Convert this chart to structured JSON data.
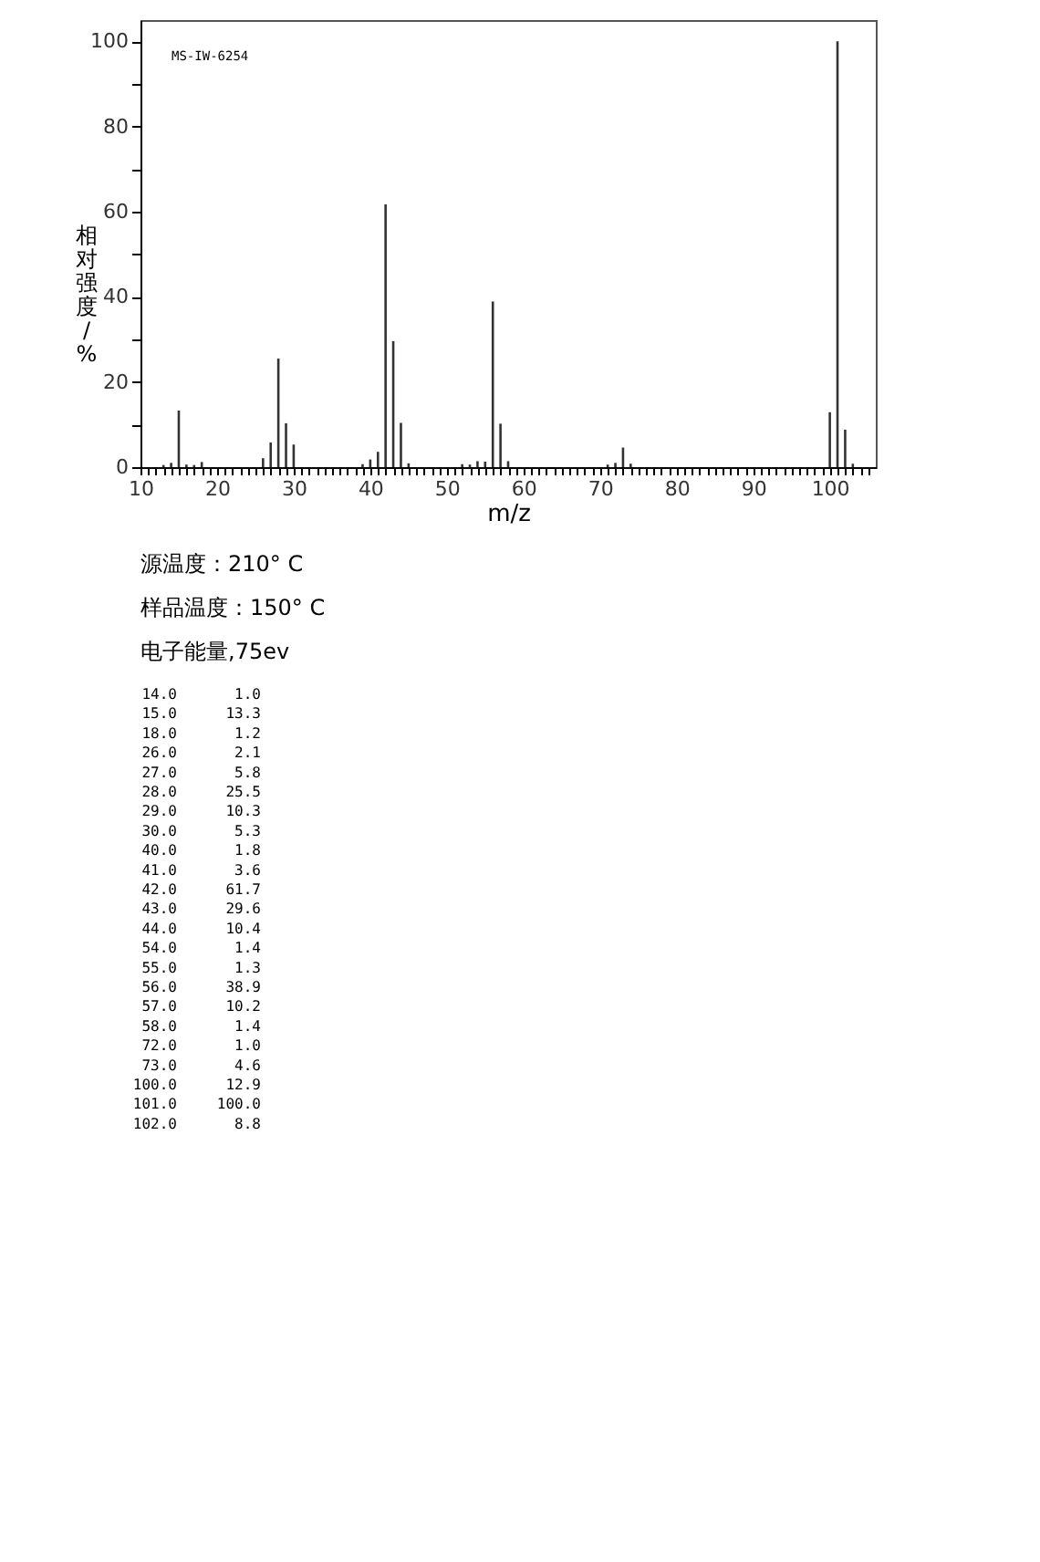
{
  "chart_data": [
    {
      "type": "bar",
      "ylabel": "相对强度/%",
      "xlabel": "m/z",
      "annotations": [
        "MS-IW-6254",
        "源温度：210° C",
        "样品温度：150° C",
        "电子能量,75ev"
      ],
      "xlim": [
        10,
        106
      ],
      "ylim": [
        0,
        105
      ],
      "xticks": [
        10,
        {
          "value": 11,
          "label": null
        },
        {
          "value": 12,
          "label": null
        },
        {
          "value": 13,
          "label": null
        },
        {
          "value": 14,
          "label": null
        },
        {
          "value": 15,
          "label": null
        },
        {
          "value": 16,
          "label": null
        },
        {
          "value": 17,
          "label": null
        },
        {
          "value": 18,
          "label": null
        },
        {
          "value": 19,
          "label": null
        },
        20,
        {
          "value": 21,
          "label": null
        },
        {
          "value": 22,
          "label": null
        },
        {
          "value": 23,
          "label": null
        },
        {
          "value": 24,
          "label": null
        },
        {
          "value": 25,
          "label": null
        },
        {
          "value": 26,
          "label": null
        },
        {
          "value": 27,
          "label": null
        },
        {
          "value": 28,
          "label": null
        },
        {
          "value": 29,
          "label": null
        },
        30,
        {
          "value": 31,
          "label": null
        },
        {
          "value": 32,
          "label": null
        },
        {
          "value": 33,
          "label": null
        },
        {
          "value": 34,
          "label": null
        },
        {
          "value": 35,
          "label": null
        },
        {
          "value": 36,
          "label": null
        },
        {
          "value": 37,
          "label": null
        },
        {
          "value": 38,
          "label": null
        },
        {
          "value": 39,
          "label": null
        },
        40,
        {
          "value": 41,
          "label": null
        },
        {
          "value": 42,
          "label": null
        },
        {
          "value": 43,
          "label": null
        },
        {
          "value": 44,
          "label": null
        },
        {
          "value": 45,
          "label": null
        },
        {
          "value": 46,
          "label": null
        },
        {
          "value": 47,
          "label": null
        },
        {
          "value": 48,
          "label": null
        },
        {
          "value": 49,
          "label": null
        },
        50,
        {
          "value": 51,
          "label": null
        },
        {
          "value": 52,
          "label": null
        },
        {
          "value": 53,
          "label": null
        },
        {
          "value": 54,
          "label": null
        },
        {
          "value": 55,
          "label": null
        },
        {
          "value": 56,
          "label": null
        },
        {
          "value": 57,
          "label": null
        },
        {
          "value": 58,
          "label": null
        },
        {
          "value": 59,
          "label": null
        },
        60,
        {
          "value": 61,
          "label": null
        },
        {
          "value": 62,
          "label": null
        },
        {
          "value": 63,
          "label": null
        },
        {
          "value": 64,
          "label": null
        },
        {
          "value": 65,
          "label": null
        },
        {
          "value": 66,
          "label": null
        },
        {
          "value": 67,
          "label": null
        },
        {
          "value": 68,
          "label": null
        },
        {
          "value": 69,
          "label": null
        },
        70,
        {
          "value": 71,
          "label": null
        },
        {
          "value": 72,
          "label": null
        },
        {
          "value": 73,
          "label": null
        },
        {
          "value": 74,
          "label": null
        },
        {
          "value": 75,
          "label": null
        },
        {
          "value": 76,
          "label": null
        },
        {
          "value": 77,
          "label": null
        },
        {
          "value": 78,
          "label": null
        },
        {
          "value": 79,
          "label": null
        },
        80,
        {
          "value": 81,
          "label": null
        },
        {
          "value": 82,
          "label": null
        },
        {
          "value": 83,
          "label": null
        },
        {
          "value": 84,
          "label": null
        },
        {
          "value": 85,
          "label": null
        },
        {
          "value": 86,
          "label": null
        },
        {
          "value": 87,
          "label": null
        },
        {
          "value": 88,
          "label": null
        },
        {
          "value": 89,
          "label": null
        },
        90,
        {
          "value": 91,
          "label": null
        },
        {
          "value": 92,
          "label": null
        },
        {
          "value": 93,
          "label": null
        },
        {
          "value": 94,
          "label": null
        },
        {
          "value": 95,
          "label": null
        },
        {
          "value": 96,
          "label": null
        },
        {
          "value": 97,
          "label": null
        },
        {
          "value": 98,
          "label": null
        },
        {
          "value": 99,
          "label": null
        },
        100,
        {
          "value": 101,
          "label": null
        },
        {
          "value": 102,
          "label": null
        },
        {
          "value": 103,
          "label": null
        },
        {
          "value": 104,
          "label": null
        },
        {
          "value": 105,
          "label": null
        }
      ],
      "yticks": [
        0,
        {
          "value": 10,
          "label": null
        },
        20,
        {
          "value": 30,
          "label": null
        },
        40,
        {
          "value": 50,
          "label": null
        },
        60,
        {
          "value": 70,
          "label": null
        },
        80,
        {
          "value": 90,
          "label": null
        },
        100
      ],
      "grid": false,
      "series": [
        {
          "color": "#333333",
          "x": [
            13,
            14,
            15,
            16,
            17,
            18,
            26,
            27,
            28,
            29,
            30,
            39,
            40,
            41,
            42,
            43,
            44,
            45,
            52,
            53,
            54,
            55,
            56,
            57,
            58,
            71,
            72,
            73,
            74,
            100,
            101,
            102,
            103
          ],
          "values": [
            0.5,
            1.0,
            13.3,
            0.6,
            0.5,
            1.2,
            2.1,
            5.8,
            25.5,
            10.3,
            5.3,
            0.7,
            1.8,
            3.6,
            61.7,
            29.6,
            10.4,
            0.9,
            0.7,
            0.6,
            1.4,
            1.3,
            38.9,
            10.2,
            1.4,
            0.6,
            1.0,
            4.6,
            0.8,
            12.9,
            100.0,
            8.8,
            0.8
          ]
        }
      ]
    },
    {
      "type": "other",
      "categories": [
        "14.0",
        "15.0",
        "18.0",
        "26.0",
        "27.0",
        "28.0",
        "29.0",
        "30.0",
        "40.0",
        "41.0",
        "42.0",
        "43.0",
        "44.0",
        "54.0",
        "55.0",
        "56.0",
        "57.0",
        "58.0",
        "72.0",
        "73.0",
        "100.0",
        "101.0",
        "102.0"
      ],
      "value_labels": [
        "1.0",
        "13.3",
        "1.2",
        "2.1",
        "5.8",
        "25.5",
        "10.3",
        "5.3",
        "1.8",
        "3.6",
        "61.7",
        "29.6",
        "10.4",
        "1.4",
        "1.3",
        "38.9",
        "10.2",
        "1.4",
        "1.0",
        "4.6",
        "12.9",
        "100.0",
        "8.8"
      ]
    }
  ]
}
